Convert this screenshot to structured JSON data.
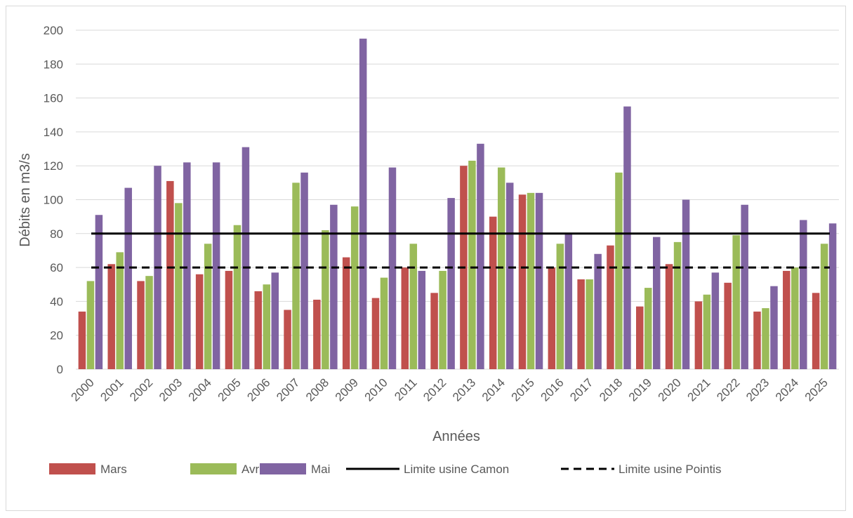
{
  "chart_data": {
    "type": "bar",
    "title": "",
    "xlabel": "Années",
    "ylabel": "Débits en m3/s",
    "ylim": [
      0,
      200
    ],
    "yticks": [
      0,
      20,
      40,
      60,
      80,
      100,
      120,
      140,
      160,
      180,
      200
    ],
    "grid": true,
    "legend_position": "bottom",
    "categories": [
      "2000",
      "2001",
      "2002",
      "2003",
      "2004",
      "2005",
      "2006",
      "2007",
      "2008",
      "2009",
      "2010",
      "2011",
      "2012",
      "2013",
      "2014",
      "2015",
      "2016",
      "2017",
      "2018",
      "2019",
      "2020",
      "2021",
      "2022",
      "2023",
      "2024",
      "2025"
    ],
    "series": [
      {
        "name": "Mars",
        "color": "#c0504d",
        "values": [
          34,
          62,
          52,
          111,
          56,
          58,
          46,
          35,
          41,
          66,
          42,
          60,
          45,
          120,
          90,
          103,
          60,
          53,
          73,
          37,
          62,
          40,
          51,
          34,
          58,
          45
        ]
      },
      {
        "name": "Avril",
        "color": "#9bbb59",
        "values": [
          52,
          69,
          55,
          98,
          74,
          85,
          50,
          110,
          82,
          96,
          54,
          74,
          58,
          123,
          119,
          104,
          74,
          53,
          116,
          48,
          75,
          44,
          79,
          36,
          60,
          74
        ]
      },
      {
        "name": "Mai",
        "color": "#8064a2",
        "values": [
          91,
          107,
          120,
          122,
          122,
          131,
          57,
          116,
          97,
          195,
          119,
          58,
          101,
          133,
          110,
          104,
          80,
          68,
          155,
          78,
          100,
          57,
          97,
          49,
          88,
          86
        ]
      }
    ],
    "reference_lines": [
      {
        "name": "Limite usine Camon",
        "value": 80,
        "style": "solid",
        "color": "#000000"
      },
      {
        "name": "Limite usine Pointis",
        "value": 60,
        "style": "dashed",
        "color": "#000000"
      }
    ]
  }
}
